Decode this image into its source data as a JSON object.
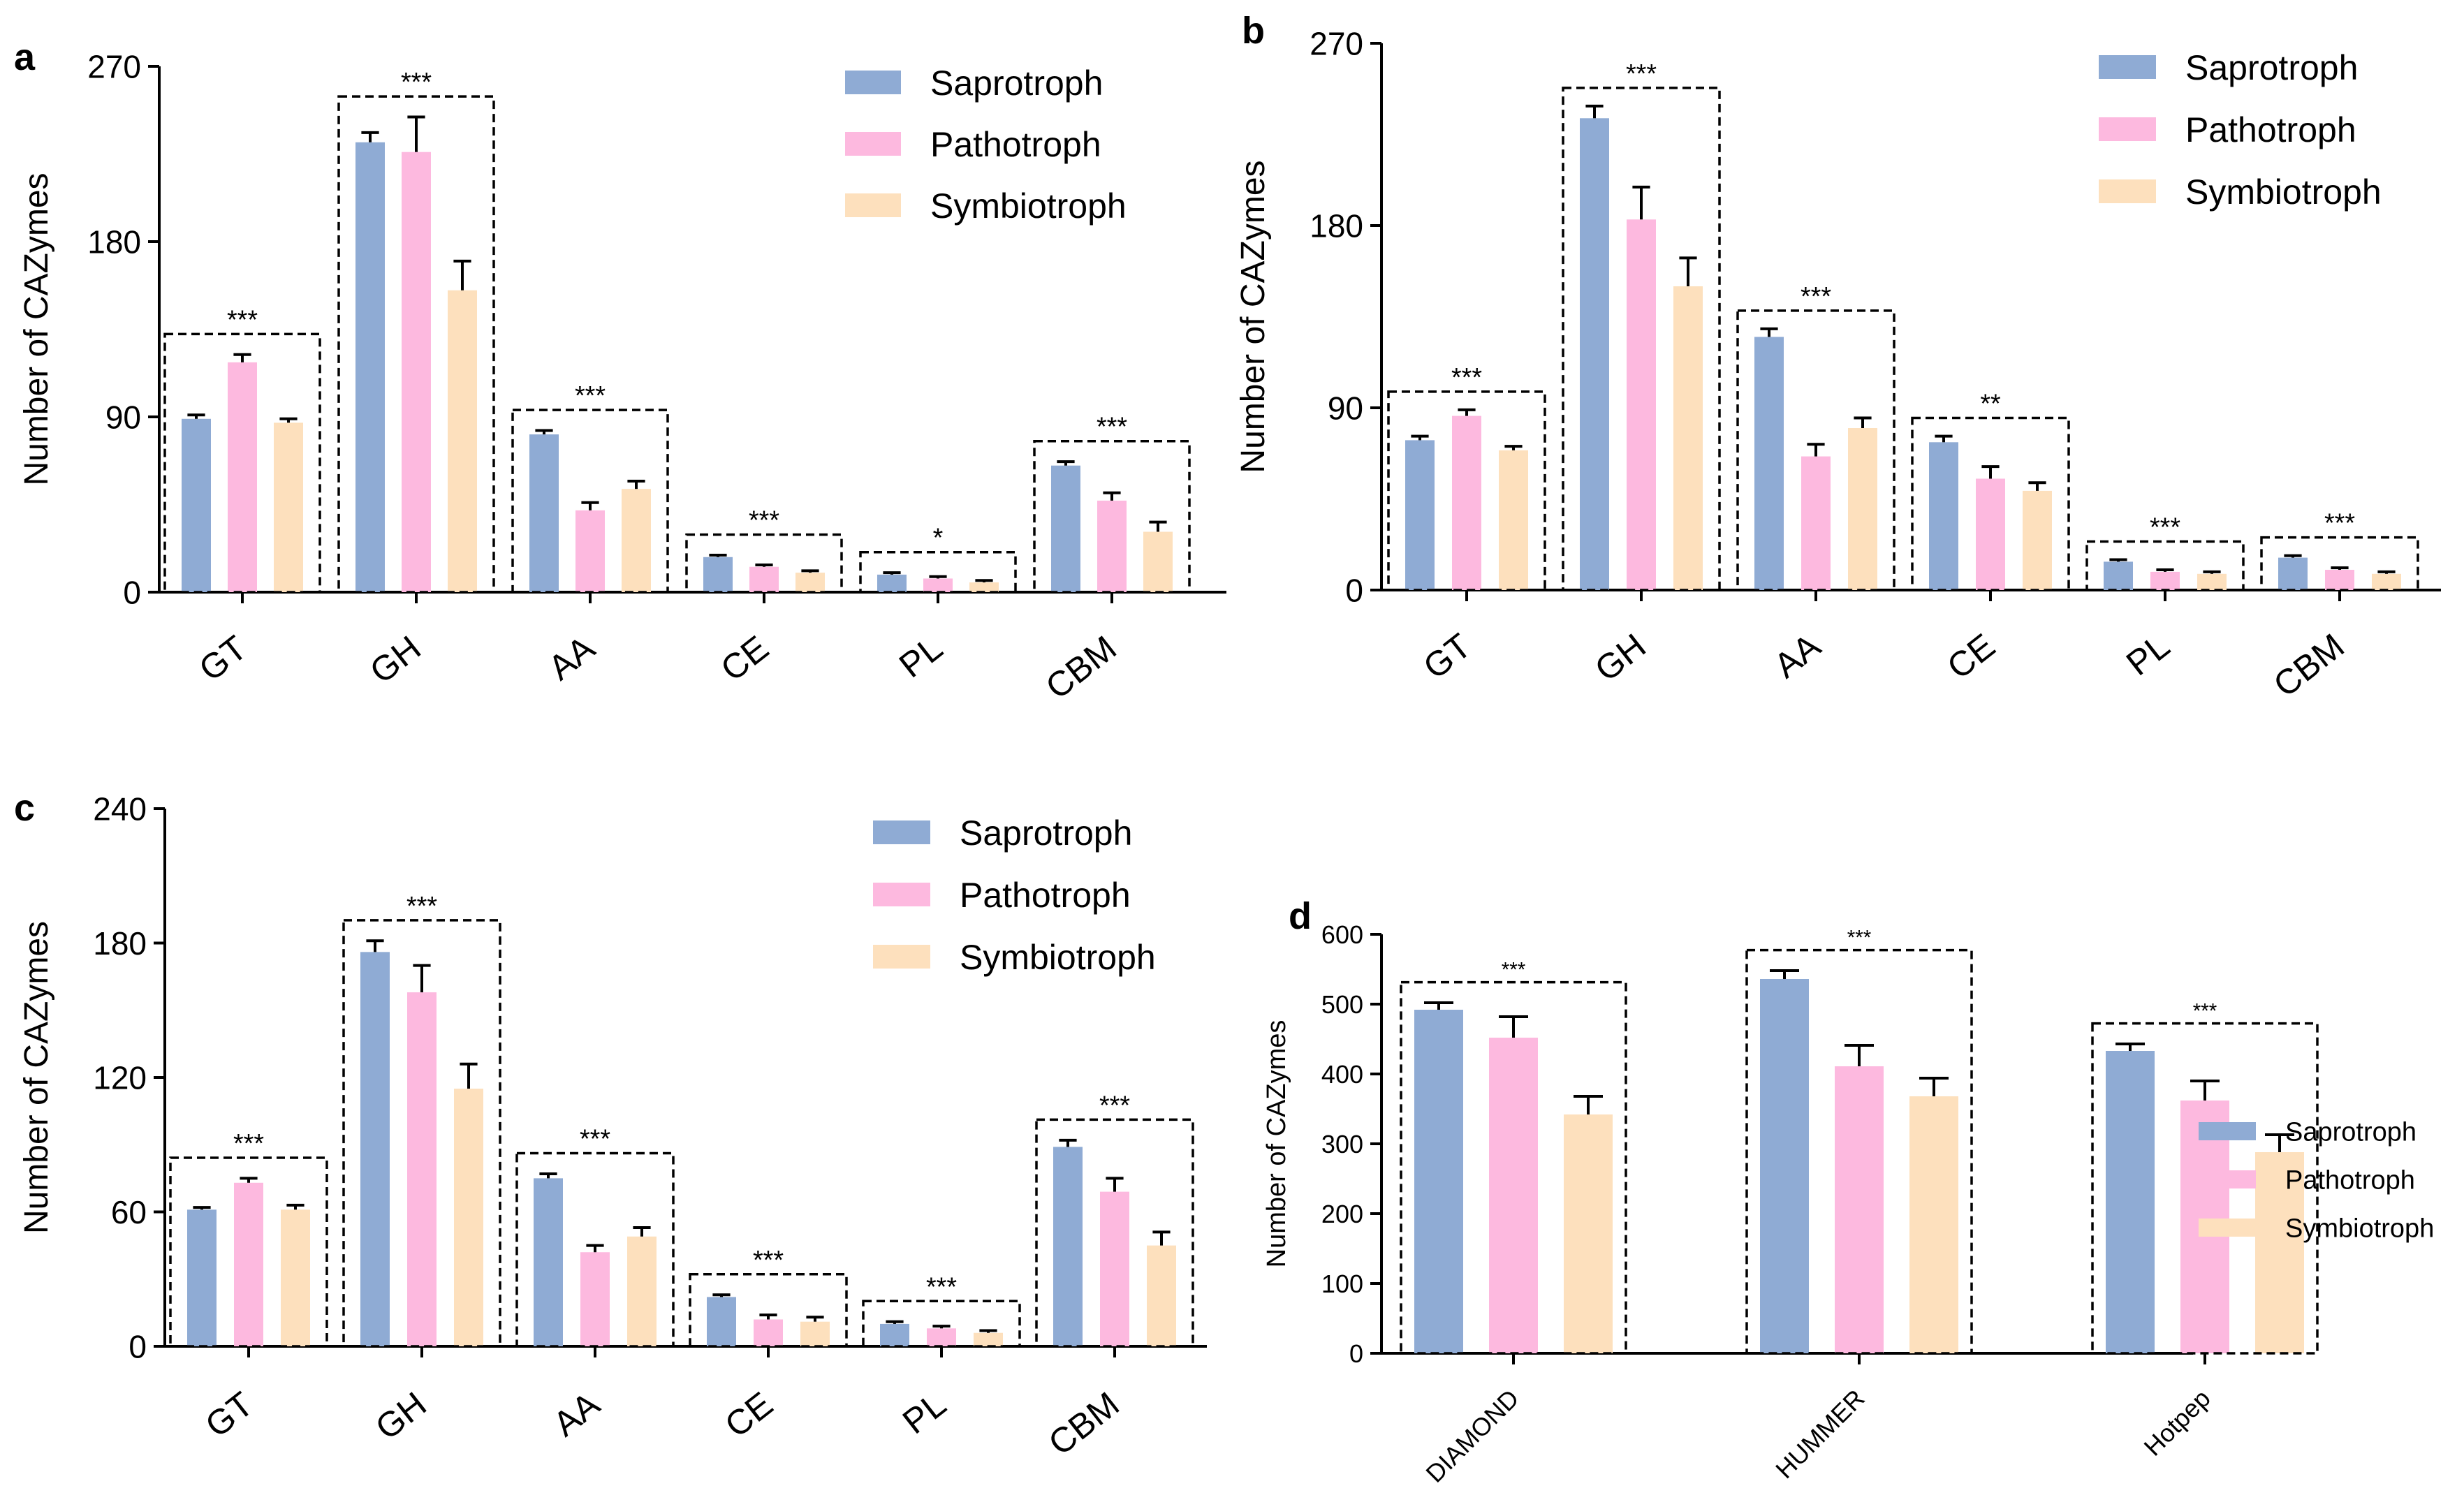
{
  "colors": {
    "Saprotroph": "#8fabd4",
    "Pathotroph": "#fdb9df",
    "Symbiotroph": "#fde0bd"
  },
  "chart_data": [
    {
      "panel": "a",
      "type": "bar",
      "ylabel": "Number of CAZymes",
      "ylim": [
        0,
        270
      ],
      "yticks": [
        "0",
        "90",
        "180",
        "270"
      ],
      "categories": [
        "GT",
        "GH",
        "AA",
        "CE",
        "PL",
        "CBM"
      ],
      "series": [
        {
          "name": "Saprotroph",
          "values": [
            89,
            231,
            81,
            18,
            9,
            65
          ],
          "errors": [
            2,
            5,
            2,
            1,
            1,
            2
          ]
        },
        {
          "name": "Pathotroph",
          "values": [
            118,
            226,
            42,
            13,
            7,
            47
          ],
          "errors": [
            4,
            18,
            4,
            1,
            1,
            4
          ]
        },
        {
          "name": "Symbiotroph",
          "values": [
            87,
            155,
            53,
            10,
            5,
            31
          ],
          "errors": [
            2,
            15,
            4,
            1,
            1,
            5
          ]
        }
      ],
      "significance": [
        "***",
        "***",
        "***",
        "***",
        "*",
        "***"
      ],
      "legend_position": "top-right"
    },
    {
      "panel": "b",
      "type": "bar",
      "ylabel": "Number of CAZymes",
      "ylim": [
        0,
        270
      ],
      "yticks": [
        "0",
        "90",
        "180",
        "270"
      ],
      "categories": [
        "GT",
        "GH",
        "AA",
        "CE",
        "PL",
        "CBM"
      ],
      "series": [
        {
          "name": "Saprotroph",
          "values": [
            74,
            233,
            125,
            73,
            14,
            16
          ],
          "errors": [
            2,
            6,
            4,
            3,
            1,
            1
          ]
        },
        {
          "name": "Pathotroph",
          "values": [
            86,
            183,
            66,
            55,
            9,
            10
          ],
          "errors": [
            3,
            16,
            6,
            6,
            1,
            1
          ]
        },
        {
          "name": "Symbiotroph",
          "values": [
            69,
            150,
            80,
            49,
            8,
            8
          ],
          "errors": [
            2,
            14,
            5,
            4,
            1,
            1
          ]
        }
      ],
      "significance": [
        "***",
        "***",
        "***",
        "**",
        "***",
        "***"
      ],
      "legend_position": "top-right"
    },
    {
      "panel": "c",
      "type": "bar",
      "ylabel": "Number of CAZymes",
      "ylim": [
        0,
        240
      ],
      "yticks": [
        "0",
        "60",
        "120",
        "180",
        "240"
      ],
      "categories": [
        "GT",
        "GH",
        "AA",
        "CE",
        "PL",
        "CBM"
      ],
      "series": [
        {
          "name": "Saprotroph",
          "values": [
            61,
            176,
            75,
            22,
            10,
            89
          ],
          "errors": [
            1,
            5,
            2,
            1,
            1,
            3
          ]
        },
        {
          "name": "Pathotroph",
          "values": [
            73,
            158,
            42,
            12,
            8,
            69
          ],
          "errors": [
            2,
            12,
            3,
            2,
            1,
            6
          ]
        },
        {
          "name": "Symbiotroph",
          "values": [
            61,
            115,
            49,
            11,
            6,
            45
          ],
          "errors": [
            2,
            11,
            4,
            2,
            1,
            6
          ]
        }
      ],
      "significance": [
        "***",
        "***",
        "***",
        "***",
        "***",
        "***"
      ],
      "legend_position": "top-right"
    },
    {
      "panel": "d",
      "type": "bar",
      "ylabel": "Number of CAZymes",
      "ylim": [
        0,
        600
      ],
      "yticks": [
        "0",
        "100",
        "200",
        "300",
        "400",
        "500",
        "600"
      ],
      "categories": [
        "DIAMOND",
        "HUMMER",
        "Hotpep"
      ],
      "series": [
        {
          "name": "Saprotroph",
          "values": [
            492,
            536,
            433
          ],
          "errors": [
            10,
            12,
            10
          ]
        },
        {
          "name": "Pathotroph",
          "values": [
            452,
            411,
            362
          ],
          "errors": [
            30,
            30,
            28
          ]
        },
        {
          "name": "Symbiotroph",
          "values": [
            342,
            368,
            288
          ],
          "errors": [
            26,
            26,
            25
          ]
        }
      ],
      "significance": [
        "***",
        "***",
        "***"
      ],
      "legend_position": "right"
    }
  ]
}
